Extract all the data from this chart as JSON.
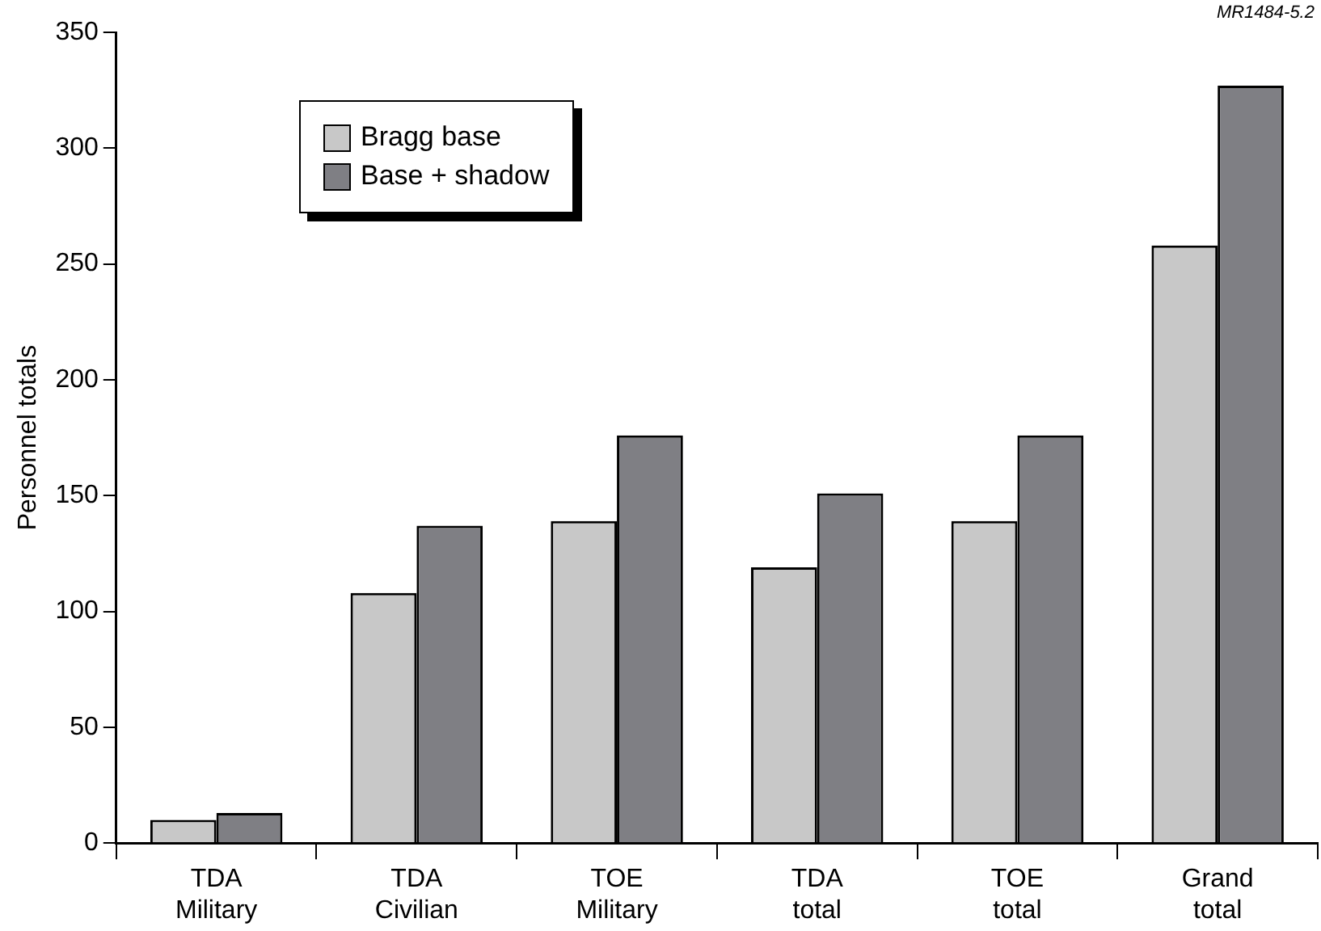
{
  "chart_data": {
    "type": "bar",
    "ylabel": "Personnel totals",
    "categories": [
      "TDA Military",
      "TDA Civilian",
      "TOE Military",
      "TDA total",
      "TOE total",
      "Grand total"
    ],
    "series": [
      {
        "name": "Bragg base",
        "color": "#c8c8c8",
        "values": [
          10,
          108,
          139,
          119,
          139,
          258
        ]
      },
      {
        "name": "Base + shadow",
        "color": "#7f7f84",
        "values": [
          13,
          137,
          176,
          151,
          176,
          327
        ]
      }
    ],
    "ylim": [
      0,
      350
    ],
    "yticks": [
      0,
      50,
      100,
      150,
      200,
      250,
      300,
      350
    ],
    "grid": false,
    "legend": "top left",
    "annotations": [
      "MR1484-5.2"
    ]
  }
}
